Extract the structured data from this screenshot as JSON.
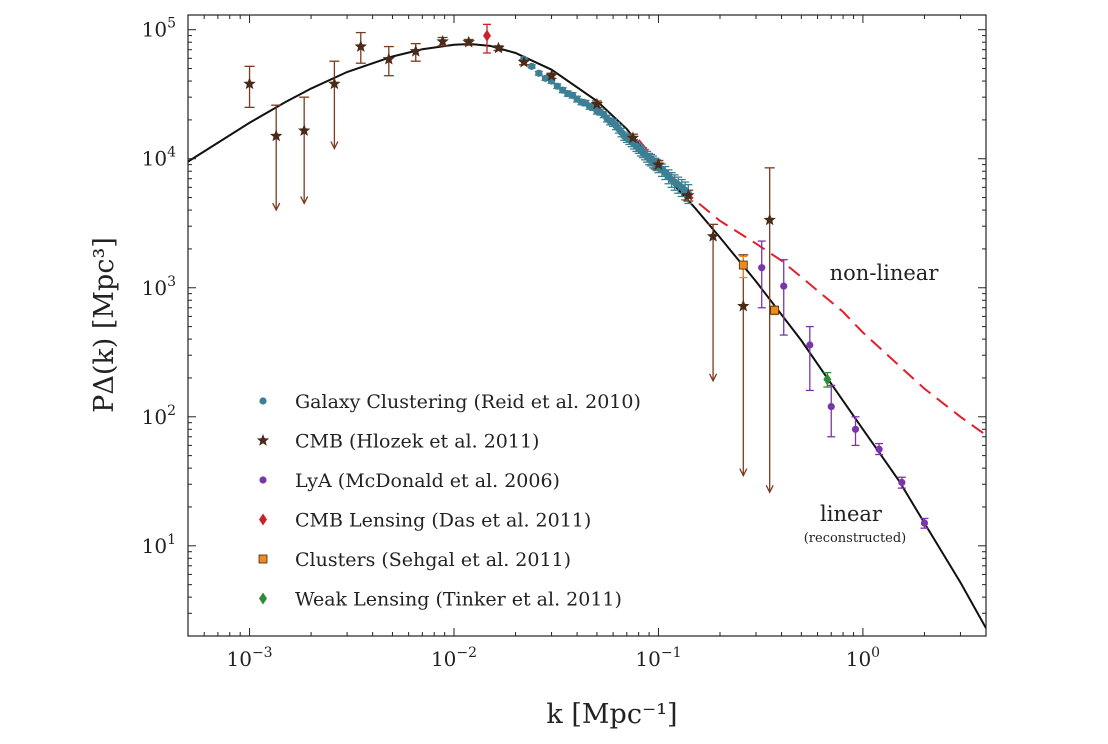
{
  "chart_data": {
    "type": "scatter",
    "xlabel": "k [Mpc⁻¹]",
    "ylabel": "PΔ(k) [Mpc³]",
    "x_scale": "log",
    "y_scale": "log",
    "xlim": [
      0.0005,
      4.0
    ],
    "ylim": [
      2.0,
      130000
    ],
    "x_ticks": [
      {
        "value": 0.001,
        "base": "10",
        "exp": "−3"
      },
      {
        "value": 0.01,
        "base": "10",
        "exp": "−2"
      },
      {
        "value": 0.1,
        "base": "10",
        "exp": "−1"
      },
      {
        "value": 1,
        "base": "10",
        "exp": "0"
      }
    ],
    "y_ticks": [
      {
        "value": 10,
        "base": "10",
        "exp": "1"
      },
      {
        "value": 100,
        "base": "10",
        "exp": "2"
      },
      {
        "value": 1000,
        "base": "10",
        "exp": "3"
      },
      {
        "value": 10000,
        "base": "10",
        "exp": "4"
      },
      {
        "value": 100000,
        "base": "10",
        "exp": "5"
      }
    ],
    "grid": false,
    "legend_position": "lower-left",
    "annotations": {
      "nonlinear": "non-linear",
      "linear": "linear",
      "linear_sub": "(reconstructed)"
    },
    "curves": [
      {
        "id": "linear",
        "color": "#111111",
        "style": "solid",
        "points": [
          [
            0.0005,
            9500
          ],
          [
            0.001,
            19000
          ],
          [
            0.0015,
            27500
          ],
          [
            0.002,
            35000
          ],
          [
            0.003,
            47000
          ],
          [
            0.005,
            62000
          ],
          [
            0.007,
            70500
          ],
          [
            0.01,
            76500
          ],
          [
            0.012,
            77500
          ],
          [
            0.015,
            75000
          ],
          [
            0.02,
            66000
          ],
          [
            0.03,
            49000
          ],
          [
            0.05,
            28000
          ],
          [
            0.07,
            17000
          ],
          [
            0.1,
            8500
          ],
          [
            0.15,
            4200
          ],
          [
            0.2,
            2450
          ],
          [
            0.3,
            1120
          ],
          [
            0.5,
            390
          ],
          [
            0.7,
            180
          ],
          [
            1.0,
            80
          ],
          [
            1.5,
            32
          ],
          [
            2.0,
            15
          ],
          [
            3.0,
            5.2
          ],
          [
            4.0,
            2.3
          ]
        ]
      },
      {
        "id": "non-linear",
        "color": "#e0202a",
        "style": "dashed",
        "points": [
          [
            0.08,
            14000
          ],
          [
            0.1,
            9200
          ],
          [
            0.12,
            6700
          ],
          [
            0.15,
            4800
          ],
          [
            0.2,
            3300
          ],
          [
            0.3,
            2200
          ],
          [
            0.4,
            1620
          ],
          [
            0.6,
            950
          ],
          [
            0.8,
            650
          ],
          [
            1.0,
            450
          ],
          [
            1.5,
            250
          ],
          [
            2.0,
            165
          ],
          [
            3.0,
            100
          ],
          [
            4.0,
            72
          ]
        ]
      }
    ],
    "series": [
      {
        "name": "Galaxy Clustering (Reid et al. 2010)",
        "color": "#3d7f94",
        "marker": "circle",
        "points": [
          [
            0.022,
            59000,
            60500,
            57500
          ],
          [
            0.024,
            52000,
            53500,
            50500
          ],
          [
            0.026,
            46000,
            47500,
            44500
          ],
          [
            0.028,
            42000,
            43500,
            40500
          ],
          [
            0.03,
            40000,
            41500,
            38500
          ],
          [
            0.032,
            36500,
            38000,
            35000
          ],
          [
            0.034,
            34000,
            35500,
            32500
          ],
          [
            0.036,
            32000,
            33500,
            30500
          ],
          [
            0.038,
            31000,
            32500,
            29500
          ],
          [
            0.04,
            29000,
            30500,
            27500
          ],
          [
            0.042,
            27500,
            28800,
            26200
          ],
          [
            0.044,
            27000,
            28300,
            25700
          ],
          [
            0.046,
            25500,
            26800,
            24200
          ],
          [
            0.048,
            25000,
            26300,
            23700
          ],
          [
            0.05,
            23500,
            24800,
            22200
          ],
          [
            0.052,
            23000,
            24200,
            21800
          ],
          [
            0.054,
            22000,
            23200,
            20800
          ],
          [
            0.056,
            20500,
            21700,
            19300
          ],
          [
            0.058,
            19500,
            20700,
            18300
          ],
          [
            0.06,
            19000,
            20200,
            17800
          ],
          [
            0.062,
            18000,
            19200,
            16800
          ],
          [
            0.064,
            17000,
            18200,
            15800
          ],
          [
            0.066,
            16000,
            17200,
            14800
          ],
          [
            0.068,
            15000,
            16100,
            13900
          ],
          [
            0.07,
            14500,
            15600,
            13400
          ],
          [
            0.072,
            14000,
            15100,
            12900
          ],
          [
            0.074,
            13500,
            14600,
            12400
          ],
          [
            0.076,
            13000,
            14100,
            11900
          ],
          [
            0.078,
            12500,
            13600,
            11400
          ],
          [
            0.08,
            12000,
            13000,
            11000
          ],
          [
            0.082,
            11500,
            12500,
            10500
          ],
          [
            0.084,
            11200,
            12200,
            10200
          ],
          [
            0.086,
            10800,
            11800,
            9800
          ],
          [
            0.088,
            10400,
            11400,
            9400
          ],
          [
            0.09,
            10000,
            11000,
            9000
          ],
          [
            0.092,
            9800,
            10800,
            8800
          ],
          [
            0.094,
            9500,
            10500,
            8500
          ],
          [
            0.096,
            9200,
            10100,
            8300
          ],
          [
            0.098,
            9000,
            9900,
            8100
          ],
          [
            0.1,
            8700,
            9600,
            7800
          ],
          [
            0.104,
            8200,
            9100,
            7300
          ],
          [
            0.108,
            7800,
            8700,
            6900
          ],
          [
            0.112,
            7300,
            8200,
            6400
          ],
          [
            0.116,
            6900,
            7800,
            6000
          ],
          [
            0.12,
            6600,
            7500,
            5700
          ],
          [
            0.125,
            6300,
            7200,
            5400
          ],
          [
            0.13,
            6000,
            6900,
            5100
          ],
          [
            0.135,
            5700,
            6600,
            4800
          ],
          [
            0.14,
            5400,
            6300,
            4500
          ]
        ]
      },
      {
        "name": "CMB (Hlozek et al. 2011)",
        "color": "#4a2a18",
        "marker": "star",
        "points": [
          [
            0.001,
            38000,
            52000,
            25000,
            false
          ],
          [
            0.00135,
            15000,
            26000,
            4000,
            true
          ],
          [
            0.00185,
            16500,
            30000,
            4500,
            true
          ],
          [
            0.0026,
            38000,
            57000,
            12000,
            true
          ],
          [
            0.0035,
            74000,
            95000,
            55000,
            false
          ],
          [
            0.0048,
            59000,
            74000,
            44000,
            false
          ],
          [
            0.0065,
            68000,
            78000,
            57000,
            false
          ],
          [
            0.0088,
            81000,
            87000,
            75000,
            false
          ],
          [
            0.0118,
            80000,
            84000,
            76000,
            false
          ],
          [
            0.0165,
            72000,
            75000,
            69000,
            false
          ],
          [
            0.022,
            56000,
            58500,
            53500,
            false
          ],
          [
            0.03,
            44000,
            46000,
            42000,
            false
          ],
          [
            0.05,
            26500,
            28000,
            25000,
            false
          ],
          [
            0.075,
            14500,
            15500,
            13500,
            false
          ],
          [
            0.1,
            9000,
            9700,
            8300,
            false
          ],
          [
            0.14,
            5200,
            5700,
            4700,
            false
          ],
          [
            0.185,
            2500,
            3100,
            190,
            true
          ],
          [
            0.26,
            720,
            1800,
            35,
            true
          ],
          [
            0.35,
            3350,
            8500,
            26,
            true
          ]
        ]
      },
      {
        "name": "LyA (McDonald et al. 2006)",
        "color": "#7b35a8",
        "marker": "circle",
        "points": [
          [
            0.32,
            1430,
            2300,
            700
          ],
          [
            0.41,
            1030,
            1650,
            430
          ],
          [
            0.55,
            360,
            500,
            160
          ],
          [
            0.7,
            120,
            175,
            70
          ],
          [
            0.92,
            80,
            100,
            60
          ],
          [
            1.2,
            56,
            62,
            51
          ],
          [
            1.55,
            31,
            34,
            28
          ],
          [
            2.0,
            15,
            16.3,
            13.7
          ]
        ]
      },
      {
        "name": "CMB Lensing (Das et al. 2011)",
        "color": "#c8222c",
        "marker": "diamond",
        "points": [
          [
            0.0145,
            90000,
            110000,
            66000
          ]
        ]
      },
      {
        "name": "Clusters (Sehgal et al. 2011)",
        "color": "#f28a1b",
        "marker": "square",
        "points": [
          [
            0.26,
            1500,
            1750,
            1200
          ],
          [
            0.37,
            670,
            720,
            620
          ]
        ]
      },
      {
        "name": "Weak Lensing (Tinker et al. 2011)",
        "color": "#2f8a3b",
        "marker": "diamond",
        "points": [
          [
            0.67,
            195,
            220,
            170
          ]
        ]
      }
    ]
  }
}
